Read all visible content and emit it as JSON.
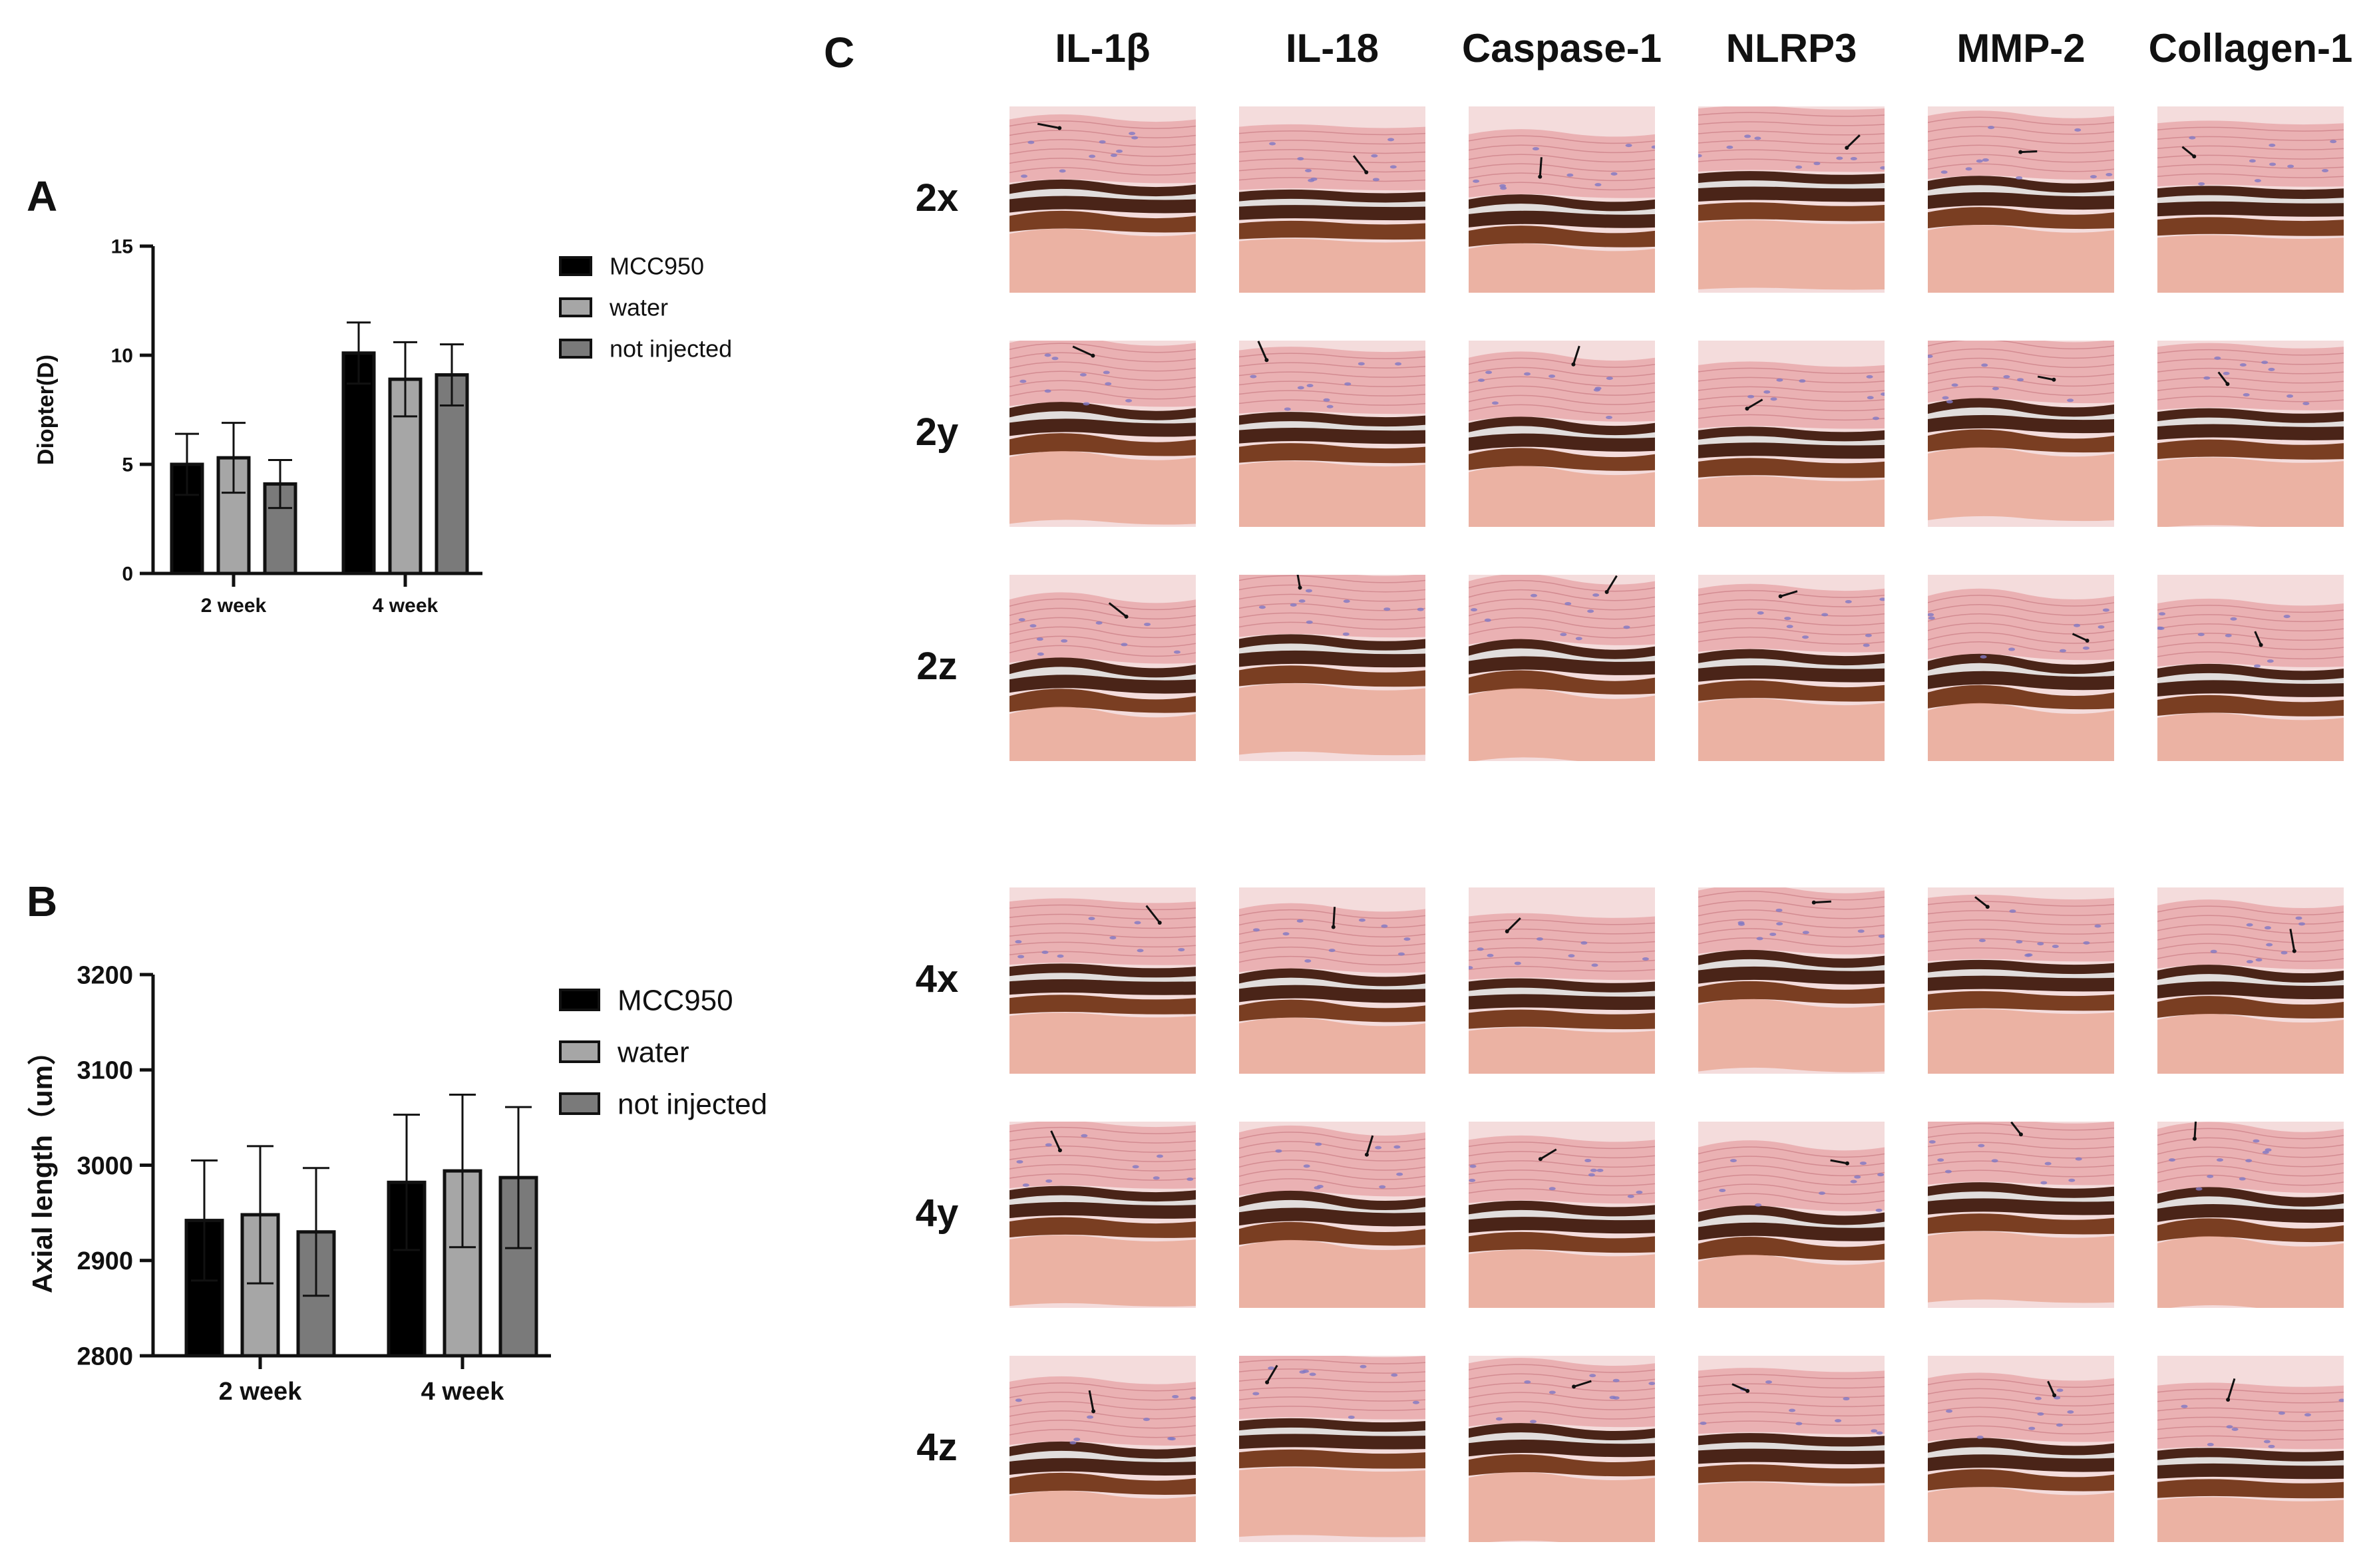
{
  "panels": {
    "a": "A",
    "b": "B",
    "c": "C"
  },
  "colors": {
    "MCC950": "#000000",
    "water": "#a6a6a6",
    "not injected": "#7a7a7a",
    "tissue_bg": "#f4dcdc",
    "stroma": "#e7a9ac",
    "pigment": "#4a2418",
    "retina": "#e8a795",
    "nuclei": "#7f78c4"
  },
  "chart_data": [
    {
      "panel": "A",
      "type": "bar",
      "ylabel": "Diopter(D)",
      "xlabel": "",
      "categories": [
        "2 week",
        "4 week"
      ],
      "ylim": [
        0,
        15
      ],
      "yticks": [
        0,
        5,
        10,
        15
      ],
      "series": [
        {
          "name": "MCC950",
          "values": [
            5.0,
            10.1
          ],
          "err": [
            1.4,
            1.4
          ]
        },
        {
          "name": "water",
          "values": [
            5.3,
            8.9
          ],
          "err": [
            1.6,
            1.7
          ]
        },
        {
          "name": "not injected",
          "values": [
            4.1,
            9.1
          ],
          "err": [
            1.1,
            1.4
          ]
        }
      ],
      "legend": "right"
    },
    {
      "panel": "B",
      "type": "bar",
      "ylabel": "Axial length（um）",
      "xlabel": "",
      "categories": [
        "2 week",
        "4 week"
      ],
      "ylim": [
        2800,
        3200
      ],
      "yticks": [
        2800,
        2900,
        3000,
        3100,
        3200
      ],
      "series": [
        {
          "name": "MCC950",
          "values": [
            2942,
            2982
          ],
          "err": [
            63,
            71
          ]
        },
        {
          "name": "water",
          "values": [
            2948,
            2994
          ],
          "err": [
            72,
            80
          ]
        },
        {
          "name": "not injected",
          "values": [
            2930,
            2987
          ],
          "err": [
            67,
            74
          ]
        }
      ],
      "legend": "right"
    }
  ],
  "histology": {
    "columns": [
      "IL-1β",
      "IL-18",
      "Caspase-1",
      "NLRP3",
      "MMP-2",
      "Collagen-1"
    ],
    "rows": [
      "2x",
      "2y",
      "2z",
      "4x",
      "4y",
      "4z"
    ]
  }
}
